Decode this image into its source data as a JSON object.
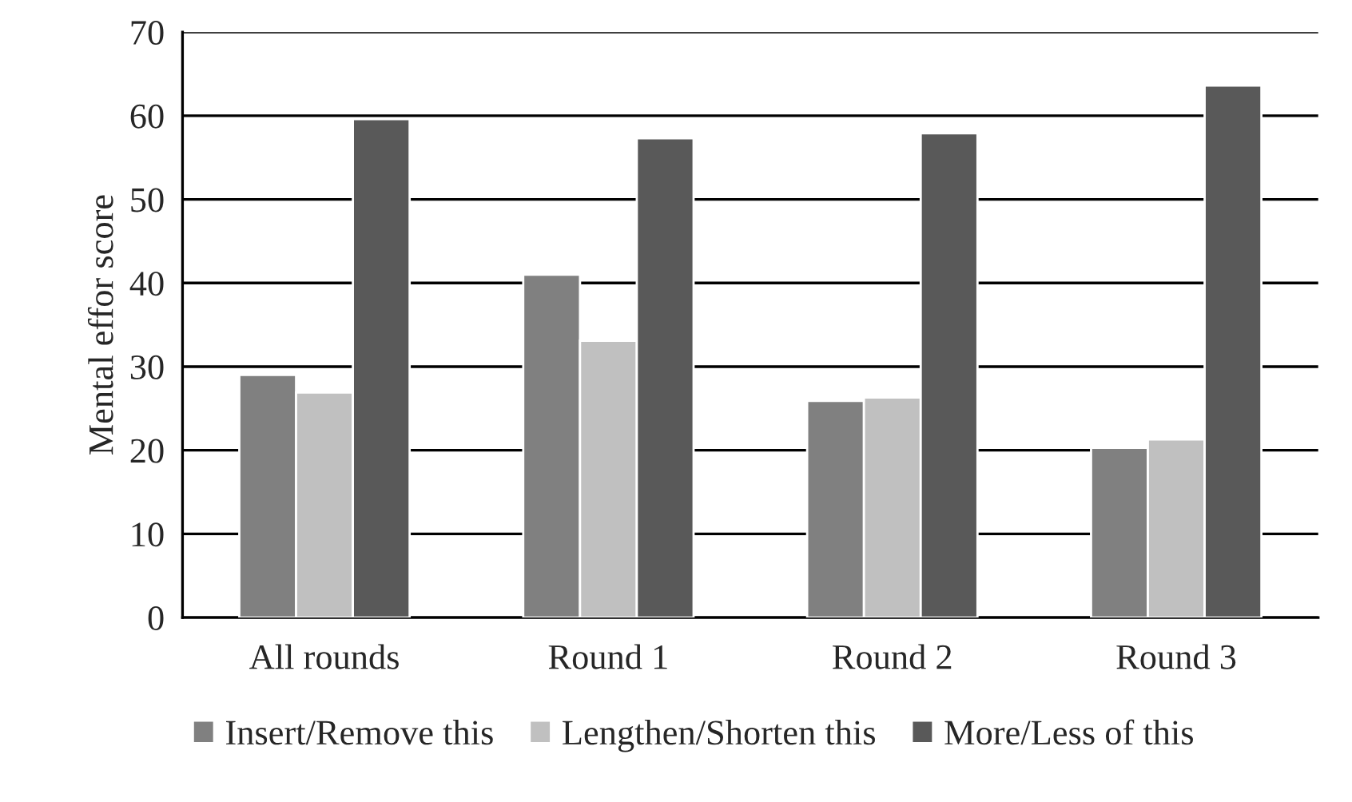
{
  "chart_data": {
    "type": "bar",
    "ylabel": "Mental effor score",
    "categories": [
      "All rounds",
      "Round 1",
      "Round 2",
      "Round 3"
    ],
    "series": [
      {
        "name": "Insert/Remove this",
        "color": "#808080",
        "values": [
          29.0,
          41.0,
          25.9,
          20.3
        ]
      },
      {
        "name": "Lengthen/Shorten this",
        "color": "#c0c0c0",
        "values": [
          26.9,
          33.1,
          26.3,
          21.3
        ]
      },
      {
        "name": "More/Less of this",
        "color": "#595959",
        "values": [
          59.6,
          57.3,
          57.9,
          63.6
        ]
      }
    ],
    "ylim": [
      0,
      70
    ],
    "yticks": [
      0,
      10,
      20,
      30,
      40,
      50,
      60,
      70
    ],
    "grid": "y",
    "legend": "bottom"
  }
}
